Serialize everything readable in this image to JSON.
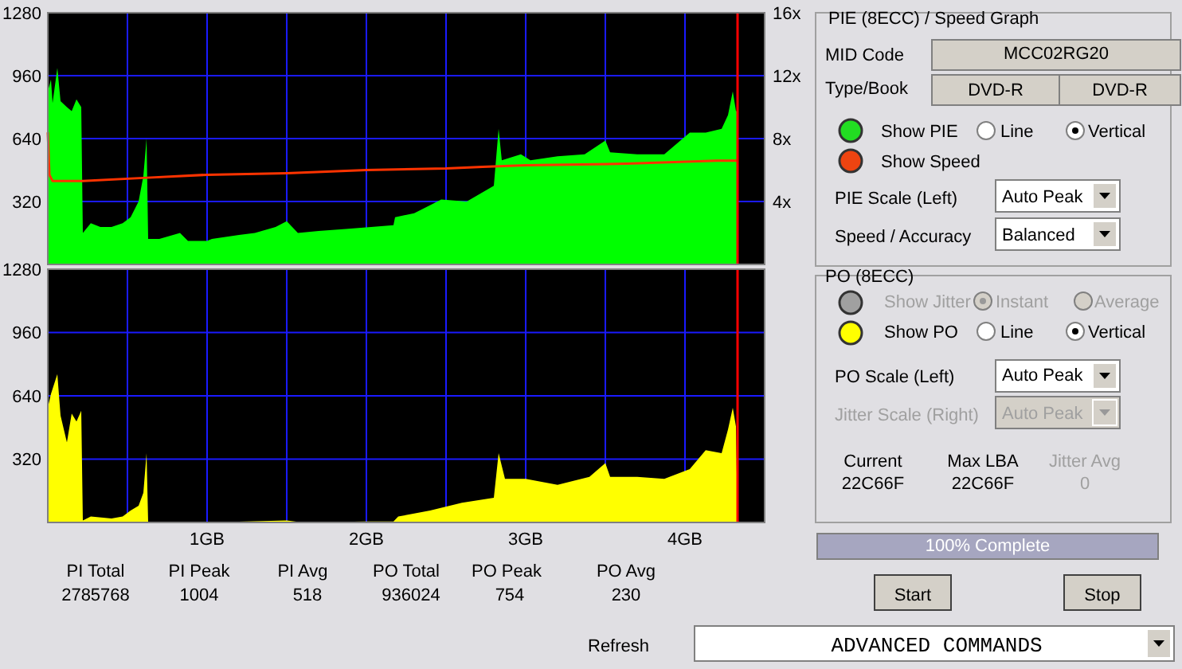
{
  "chart_data": [
    {
      "type": "area",
      "xlim": [
        0,
        4.5
      ],
      "ylim": [
        0,
        1280
      ],
      "y2lim": [
        0,
        16
      ],
      "tick_labels": "y",
      "grid": true,
      "xticks": [
        {
          "value": 0.5,
          "label": null
        },
        {
          "value": 1,
          "label": null
        },
        {
          "value": 1.5,
          "label": null
        },
        {
          "value": 2,
          "label": null
        },
        {
          "value": 2.5,
          "label": null
        },
        {
          "value": 3,
          "label": null
        },
        {
          "value": 3.5,
          "label": null
        },
        {
          "value": 4,
          "label": null
        }
      ],
      "yticks": [
        320,
        640,
        960,
        1280
      ],
      "y2ticks": [
        {
          "value": 4,
          "label": "4x"
        },
        {
          "value": 8,
          "label": "8x"
        },
        {
          "value": 12,
          "label": "12x"
        },
        {
          "value": 16,
          "label": "16x"
        }
      ],
      "series": [
        {
          "type": "area",
          "color": "#00ff00",
          "x": [
            0,
            0.02,
            0.03,
            0.06,
            0.08,
            0.12,
            0.15,
            0.18,
            0.21,
            0.22,
            0.27,
            0.33,
            0.4,
            0.47,
            0.52,
            0.57,
            0.6,
            0.62,
            0.63,
            0.7,
            0.83,
            0.88,
            1.0,
            1.03,
            1.2,
            1.3,
            1.43,
            1.5,
            1.57,
            1.7,
            1.87,
            2.03,
            2.17,
            2.18,
            2.3,
            2.47,
            2.63,
            2.8,
            2.83,
            2.85,
            2.97,
            3.03,
            3.2,
            3.37,
            3.5,
            3.53,
            3.7,
            3.87,
            4.03,
            4.13,
            4.23,
            4.27,
            4.3,
            4.32,
            4.33
          ],
          "values": [
            880,
            940,
            820,
            1000,
            830,
            800,
            780,
            840,
            800,
            160,
            210,
            190,
            190,
            210,
            240,
            320,
            450,
            640,
            130,
            130,
            160,
            120,
            120,
            130,
            150,
            160,
            190,
            220,
            160,
            170,
            180,
            190,
            200,
            240,
            260,
            330,
            320,
            400,
            690,
            530,
            560,
            530,
            550,
            560,
            630,
            570,
            560,
            560,
            670,
            670,
            690,
            760,
            880,
            780,
            780
          ]
        },
        {
          "type": "line",
          "axis": "y2",
          "color": "#ff3300",
          "x": [
            0,
            0.01,
            0.03,
            0.22,
            0.6,
            1.0,
            1.5,
            2.0,
            2.5,
            2.73,
            3.0,
            3.63,
            4.2,
            4.33
          ],
          "values": [
            8.4,
            5.7,
            5.3,
            5.3,
            5.5,
            5.7,
            5.8,
            6.0,
            6.1,
            6.2,
            6.3,
            6.4,
            6.6,
            6.6
          ]
        }
      ],
      "ref_lines": [
        {
          "axis": "x",
          "value": 4.33,
          "color": "#ff0000"
        }
      ]
    },
    {
      "type": "area",
      "xlim": [
        0,
        4.5
      ],
      "ylim": [
        0,
        1280
      ],
      "grid": true,
      "xticks": [
        {
          "value": 0.5,
          "label": null
        },
        {
          "value": 1,
          "label": "1GB"
        },
        {
          "value": 1.5,
          "label": null
        },
        {
          "value": 2,
          "label": "2GB"
        },
        {
          "value": 2.5,
          "label": null
        },
        {
          "value": 3,
          "label": "3GB"
        },
        {
          "value": 3.5,
          "label": null
        },
        {
          "value": 4,
          "label": "4GB"
        }
      ],
      "yticks": [
        320,
        640,
        960,
        1280
      ],
      "series": [
        {
          "type": "area",
          "color": "#ffff00",
          "x": [
            0,
            0.02,
            0.06,
            0.08,
            0.12,
            0.15,
            0.18,
            0.21,
            0.22,
            0.27,
            0.4,
            0.47,
            0.52,
            0.57,
            0.6,
            0.62,
            0.63,
            1.0,
            1.5,
            1.6,
            2.0,
            2.17,
            2.2,
            2.4,
            2.6,
            2.8,
            2.83,
            2.87,
            3.0,
            3.2,
            3.4,
            3.5,
            3.53,
            3.7,
            3.87,
            4.03,
            4.13,
            4.23,
            4.27,
            4.3,
            4.32,
            4.33
          ],
          "values": [
            580,
            650,
            750,
            540,
            405,
            550,
            510,
            565,
            10,
            30,
            20,
            30,
            60,
            85,
            150,
            350,
            0,
            0,
            10,
            0,
            5,
            5,
            30,
            60,
            100,
            125,
            350,
            220,
            220,
            190,
            230,
            300,
            230,
            230,
            220,
            270,
            365,
            350,
            470,
            580,
            485,
            0
          ]
        }
      ],
      "ref_lines": [
        {
          "axis": "x",
          "value": 4.33,
          "color": "#ff0000"
        }
      ]
    },
    {
      "type": "other",
      "annotations": [
        "PIE (8ECC) / Speed Graph",
        "MID Code",
        "MCC02RG20",
        "Type/Book",
        "DVD-R",
        "DVD-R",
        "Show PIE",
        "Line",
        "Vertical",
        "Show Speed",
        "PIE Scale (Left)",
        "Auto Peak",
        "Speed / Accuracy",
        "Balanced",
        "PO (8ECC)",
        "Show Jitter",
        "Instant",
        "Average",
        "Show PO",
        "Line",
        "Vertical",
        "PO Scale (Left)",
        "Auto Peak",
        "Jitter Scale (Right)",
        "Auto Peak",
        "Current",
        "22C66F",
        "Max LBA",
        "22C66F",
        "Jitter Avg",
        "0",
        "100% Complete",
        "Start",
        "Stop",
        "ADVANCED COMMANDS",
        "Refresh",
        "PI Total",
        "2785768",
        "PI Peak",
        "1004",
        "PI Avg",
        "518",
        "PO Total",
        "936024",
        "PO Peak",
        "754",
        "PO Avg",
        "230"
      ]
    }
  ]
}
